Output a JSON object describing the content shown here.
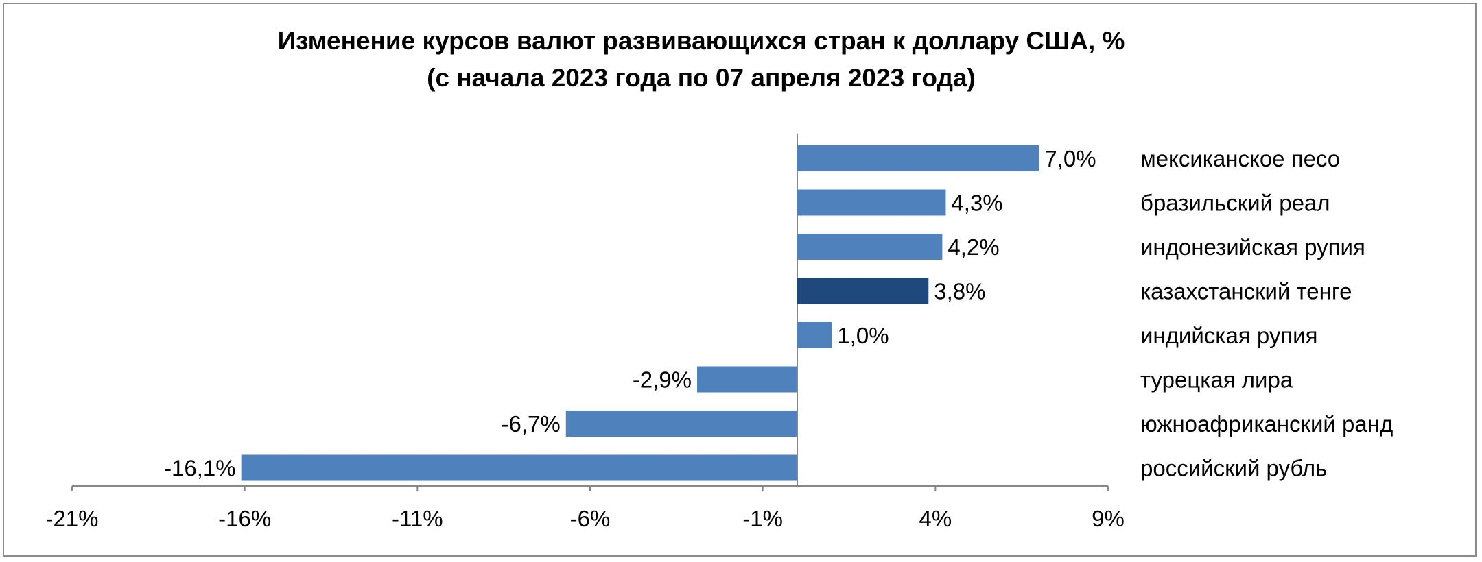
{
  "chart_data": {
    "type": "bar",
    "orientation": "horizontal",
    "title": "Изменение курсов валют развивающихся стран к доллару США, %",
    "subtitle": "(с начала 2023 года по 07 апреля 2023 года)",
    "xlabel": "",
    "ylabel": "",
    "xlim": [
      -21,
      9
    ],
    "xticks": [
      -21,
      -16,
      -11,
      -6,
      -1,
      4,
      9
    ],
    "xtick_labels": [
      "-21%",
      "-16%",
      "-11%",
      "-6%",
      "-1%",
      "4%",
      "9%"
    ],
    "grid": false,
    "legend": "none",
    "categories": [
      "мексиканское песо",
      "бразильский реал",
      "индонезийская рупия",
      "казахстанский тенге",
      "индийская рупия",
      "турецкая лира",
      "южноафриканский ранд",
      "российский рубль"
    ],
    "values": [
      7.0,
      4.3,
      4.2,
      3.8,
      1.0,
      -2.9,
      -6.7,
      -16.1
    ],
    "value_labels": [
      "7,0%",
      "4,3%",
      "4,2%",
      "3,8%",
      "1,0%",
      "-2,9%",
      "-6,7%",
      "-16,1%"
    ],
    "bar_colors": [
      "#4f81bd",
      "#4f81bd",
      "#4f81bd",
      "#1f497d",
      "#4f81bd",
      "#4f81bd",
      "#4f81bd",
      "#4f81bd"
    ]
  }
}
